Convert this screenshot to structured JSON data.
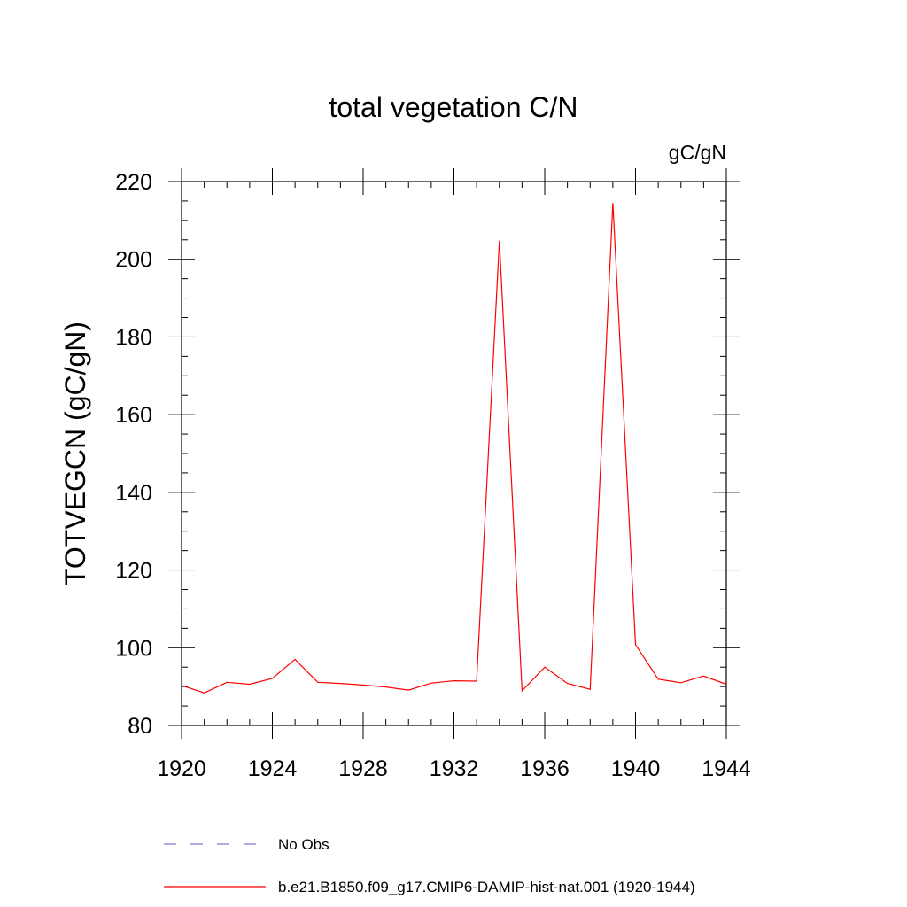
{
  "chart_data": {
    "type": "line",
    "title": "total vegetation C/N",
    "units": "gC/gN",
    "ylabel": "TOTVEGCN  (gC/gN)",
    "xlabel": "",
    "xlim": [
      1920,
      1944
    ],
    "ylim": [
      80,
      220
    ],
    "xticks": [
      "1920",
      "1924",
      "1928",
      "1932",
      "1936",
      "1940",
      "1944"
    ],
    "yticks": [
      "80",
      "100",
      "120",
      "140",
      "160",
      "180",
      "200",
      "220"
    ],
    "x": [
      1920,
      1921,
      1922,
      1923,
      1924,
      1925,
      1926,
      1927,
      1928,
      1929,
      1930,
      1931,
      1932,
      1933,
      1934,
      1935,
      1936,
      1937,
      1938,
      1939,
      1940,
      1941,
      1942,
      1943,
      1944
    ],
    "series": [
      {
        "name": "b.e21.B1850.f09_g17.CMIP6-DAMIP-hist-nat.001 (1920-1944)",
        "color": "#ff0000",
        "values": [
          90.3,
          88.4,
          91.1,
          90.6,
          92.1,
          97.0,
          91.1,
          90.8,
          90.4,
          89.9,
          89.1,
          90.9,
          91.5,
          91.4,
          204.8,
          88.9,
          95.0,
          90.8,
          89.3,
          214.5,
          100.8,
          91.9,
          91.0,
          92.7,
          90.6
        ]
      }
    ],
    "legend": [
      {
        "label": "No Obs",
        "style": "dashed",
        "color": "#7b7bd6"
      },
      {
        "label": "b.e21.B1850.f09_g17.CMIP6-DAMIP-hist-nat.001 (1920-1944)",
        "style": "solid",
        "color": "#ff0000"
      }
    ],
    "legend_position": "bottom",
    "grid": false
  }
}
